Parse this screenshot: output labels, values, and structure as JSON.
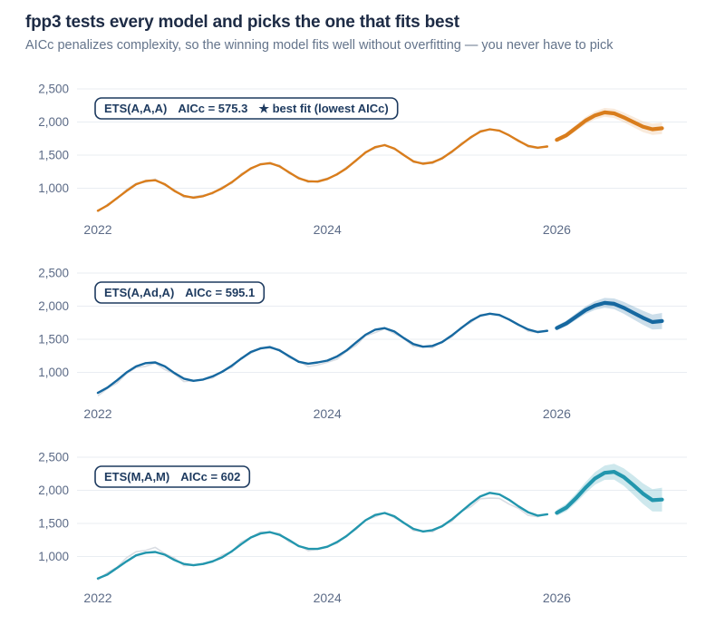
{
  "header": {
    "title": "fpp3 tests every model and picks the one that fits best",
    "subtitle": "AICc penalizes complexity, so the winning model fits well without overfitting — you never have to pick"
  },
  "colors": {
    "title_text": "#1d2b45",
    "subtitle_text": "#64748b",
    "axis_text": "#5c6b87",
    "gridline": "#e9edf2",
    "observed_line": "#d9dde3",
    "label_box": "#1d3a5f",
    "background": "#ffffff"
  },
  "chart_data": {
    "type": "line",
    "layout": "three stacked small multiples, shared axes, horizontal gridlines only, no axis lines",
    "x_unit": "monthly",
    "x_start": "2022-01",
    "x_tick_labels": [
      "2022",
      "2024",
      "2026"
    ],
    "x_tick_month_index": [
      0,
      24,
      48
    ],
    "y_tick_labels": [
      "2,500",
      "2,000",
      "1,500",
      "1,000"
    ],
    "y_tick_values": [
      2500,
      2000,
      1500,
      1000
    ],
    "ylim": [
      550,
      2550
    ],
    "forecast_start_month_index": 48,
    "observed": [
      645,
      758,
      838,
      982,
      1072,
      1092,
      1138,
      1042,
      978,
      862,
      872,
      895,
      915,
      1022,
      1072,
      1222,
      1288,
      1372,
      1362,
      1348,
      1222,
      1168,
      1088,
      1112,
      1152,
      1198,
      1318,
      1408,
      1552,
      1602,
      1662,
      1588,
      1512,
      1392,
      1388,
      1372,
      1468,
      1532,
      1682,
      1752,
      1872,
      1882,
      1878,
      1792,
      1728,
      1622,
      1602,
      1642
    ],
    "panels": [
      {
        "name": "panel-ets-aaa",
        "model": "ETS(A,A,A)",
        "aicc_label": "AICc = 575.3",
        "badge": "★ best fit (lowest AICc)",
        "color": "#d97d1c",
        "band_opacity": 0.16,
        "fitted": [
          660,
          740,
          850,
          960,
          1060,
          1110,
          1120,
          1060,
          960,
          885,
          858,
          880,
          930,
          1000,
          1090,
          1200,
          1300,
          1360,
          1380,
          1330,
          1240,
          1150,
          1105,
          1100,
          1140,
          1210,
          1300,
          1420,
          1540,
          1620,
          1650,
          1600,
          1500,
          1405,
          1370,
          1390,
          1450,
          1550,
          1660,
          1770,
          1855,
          1890,
          1868,
          1800,
          1715,
          1640,
          1612,
          1630
        ],
        "forecast_mean": [
          1730,
          1800,
          1910,
          2020,
          2100,
          2145,
          2130,
          2070,
          2000,
          1930,
          1890,
          1905
        ],
        "forecast_lo": [
          1700,
          1762,
          1864,
          1965,
          2040,
          2078,
          2060,
          1996,
          1922,
          1848,
          1805,
          1818
        ],
        "forecast_hi": [
          1760,
          1838,
          1956,
          2075,
          2160,
          2212,
          2200,
          2144,
          2078,
          2012,
          1975,
          1992
        ]
      },
      {
        "name": "panel-ets-aada",
        "model": "ETS(A,Ad,A)",
        "aicc_label": "AICc = 595.1",
        "badge": "",
        "color": "#1668a0",
        "band_opacity": 0.22,
        "fitted": [
          690,
          770,
          880,
          1000,
          1090,
          1140,
          1150,
          1090,
          990,
          905,
          872,
          892,
          940,
          1010,
          1100,
          1210,
          1308,
          1362,
          1382,
          1332,
          1245,
          1160,
          1132,
          1150,
          1178,
          1240,
          1330,
          1450,
          1568,
          1645,
          1668,
          1618,
          1518,
          1428,
          1388,
          1400,
          1458,
          1556,
          1668,
          1778,
          1856,
          1886,
          1866,
          1798,
          1718,
          1648,
          1610,
          1628
        ],
        "forecast_mean": [
          1670,
          1740,
          1840,
          1940,
          2010,
          2050,
          2035,
          1975,
          1900,
          1825,
          1760,
          1775
        ],
        "forecast_lo": [
          1635,
          1698,
          1790,
          1882,
          1944,
          1976,
          1953,
          1885,
          1802,
          1719,
          1646,
          1653
        ],
        "forecast_hi": [
          1705,
          1782,
          1890,
          1998,
          2076,
          2124,
          2117,
          2065,
          1998,
          1931,
          1874,
          1897
        ]
      },
      {
        "name": "panel-ets-mam",
        "model": "ETS(M,A,M)",
        "aicc_label": "AICc = 602",
        "badge": "",
        "color": "#2296ad",
        "band_opacity": 0.22,
        "fitted": [
          668,
          728,
          828,
          928,
          1018,
          1058,
          1068,
          1028,
          948,
          888,
          868,
          888,
          928,
          988,
          1078,
          1188,
          1288,
          1348,
          1368,
          1328,
          1248,
          1158,
          1118,
          1115,
          1148,
          1218,
          1308,
          1428,
          1548,
          1628,
          1658,
          1608,
          1508,
          1418,
          1378,
          1398,
          1458,
          1558,
          1678,
          1798,
          1908,
          1962,
          1938,
          1858,
          1758,
          1668,
          1618,
          1638
        ],
        "forecast_mean": [
          1660,
          1740,
          1880,
          2040,
          2180,
          2265,
          2280,
          2200,
          2080,
          1950,
          1850,
          1860
        ],
        "forecast_lo": [
          1615,
          1683,
          1810,
          1957,
          2085,
          2157,
          2160,
          2068,
          1936,
          1794,
          1682,
          1680
        ],
        "forecast_hi": [
          1705,
          1797,
          1950,
          2123,
          2275,
          2373,
          2400,
          2332,
          2224,
          2106,
          2018,
          2040
        ]
      }
    ]
  }
}
